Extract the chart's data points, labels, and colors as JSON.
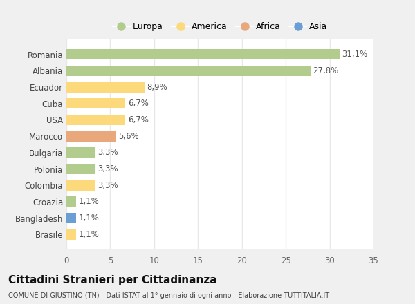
{
  "countries": [
    "Romania",
    "Albania",
    "Ecuador",
    "Cuba",
    "USA",
    "Marocco",
    "Bulgaria",
    "Polonia",
    "Colombia",
    "Croazia",
    "Bangladesh",
    "Brasile"
  ],
  "values": [
    31.1,
    27.8,
    8.9,
    6.7,
    6.7,
    5.6,
    3.3,
    3.3,
    3.3,
    1.1,
    1.1,
    1.1
  ],
  "labels": [
    "31,1%",
    "27,8%",
    "8,9%",
    "6,7%",
    "6,7%",
    "5,6%",
    "3,3%",
    "3,3%",
    "3,3%",
    "1,1%",
    "1,1%",
    "1,1%"
  ],
  "categories": [
    "Europa",
    "America",
    "Africa",
    "Asia"
  ],
  "colors": {
    "Romania": "#b2cc8d",
    "Albania": "#b2cc8d",
    "Ecuador": "#fcd97a",
    "Cuba": "#fcd97a",
    "USA": "#fcd97a",
    "Marocco": "#e8a87c",
    "Bulgaria": "#b2cc8d",
    "Polonia": "#b2cc8d",
    "Colombia": "#fcd97a",
    "Croazia": "#b2cc8d",
    "Bangladesh": "#6b9fd4",
    "Brasile": "#fcd97a"
  },
  "legend_colors": {
    "Europa": "#b2cc8d",
    "America": "#fcd97a",
    "Africa": "#e8a87c",
    "Asia": "#6b9fd4"
  },
  "title": "Cittadini Stranieri per Cittadinanza",
  "subtitle": "COMUNE DI GIUSTINO (TN) - Dati ISTAT al 1° gennaio di ogni anno - Elaborazione TUTTITALIA.IT",
  "xlim": [
    0,
    35
  ],
  "xticks": [
    0,
    5,
    10,
    15,
    20,
    25,
    30,
    35
  ],
  "bg_color": "#f0f0f0",
  "plot_bg_color": "#ffffff",
  "grid_color": "#e8e8e8",
  "label_fontsize": 8.5,
  "ytick_fontsize": 8.5,
  "xtick_fontsize": 8.5,
  "title_fontsize": 11,
  "subtitle_fontsize": 7,
  "legend_fontsize": 9
}
